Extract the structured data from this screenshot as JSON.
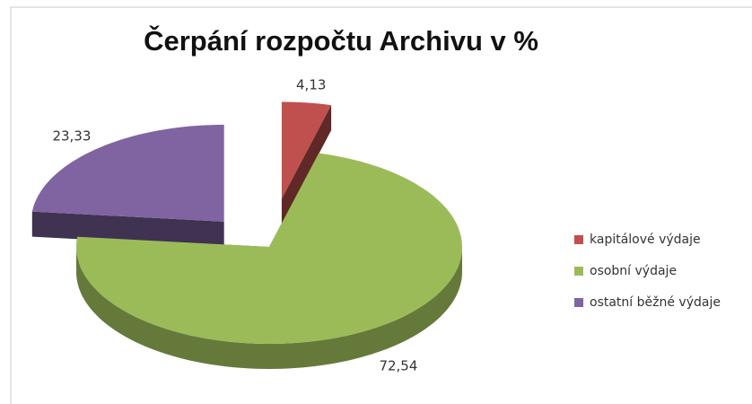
{
  "chart_data": {
    "type": "pie",
    "title": "Čerpání rozpočtu Archivu v %",
    "categories": [
      "kapitálové výdaje",
      "osobní výdaje",
      "ostatní běžné výdaje"
    ],
    "values": [
      4.13,
      72.54,
      23.33
    ],
    "value_labels": [
      "4,13",
      "72,54",
      "23,33"
    ],
    "colors": [
      "#c0504d",
      "#9bbb59",
      "#8064a2"
    ],
    "legend": "right"
  }
}
